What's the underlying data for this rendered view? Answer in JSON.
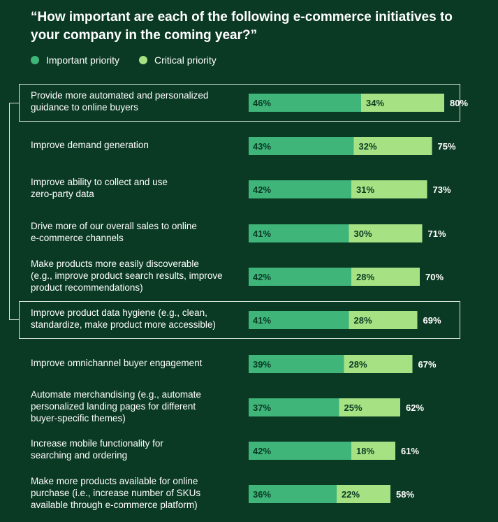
{
  "title": "“How important are each of the following e-commerce initiatives to your company in the coming year?”",
  "legend": [
    {
      "label": "Important priority",
      "color": "#3fb57a"
    },
    {
      "label": "Critical priority",
      "color": "#a6e283"
    }
  ],
  "colors": {
    "background": "#0b3a24",
    "important": "#3fb57a",
    "critical": "#a6e283",
    "highlight": "#dfe9e1"
  },
  "chart_data": {
    "type": "bar",
    "orientation": "horizontal",
    "stacked": true,
    "categories": [
      "Provide more automated and personalized guidance to online buyers",
      "Improve demand generation",
      "Improve ability to collect and use zero-party data",
      "Drive more of our overall sales to online e-commerce channels",
      "Make products more easily discoverable (e.g., improve product search results, improve product recommendations)",
      "Improve product data hygiene (e.g., clean, standardize, make product more accessible)",
      "Improve omnichannel buyer engagement",
      "Automate merchandising (e.g., automate personalized landing pages for different buyer-specific themes)",
      "Increase mobile functionality for searching and ordering",
      "Make more products available for online purchase (i.e., increase number of SKUs available through e-commerce platform)"
    ],
    "series": [
      {
        "name": "Important priority",
        "values": [
          46,
          43,
          42,
          41,
          42,
          41,
          39,
          37,
          42,
          36
        ]
      },
      {
        "name": "Critical priority",
        "values": [
          34,
          32,
          31,
          30,
          28,
          28,
          28,
          25,
          18,
          22
        ]
      }
    ],
    "value_labels": {
      "important": [
        "46%",
        "43%",
        "42%",
        "41%",
        "42%",
        "41%",
        "39%",
        "37%",
        "42%",
        "36%"
      ],
      "critical": [
        "34%",
        "32%",
        "31%",
        "30%",
        "28%",
        "28%",
        "28%",
        "25%",
        "18%",
        "22%"
      ],
      "total": [
        "80%",
        "75%",
        "73%",
        "71%",
        "70%",
        "69%",
        "67%",
        "62%",
        "61%",
        "58%"
      ]
    },
    "highlighted": [
      0,
      5
    ],
    "xlim": [
      0,
      100
    ]
  }
}
